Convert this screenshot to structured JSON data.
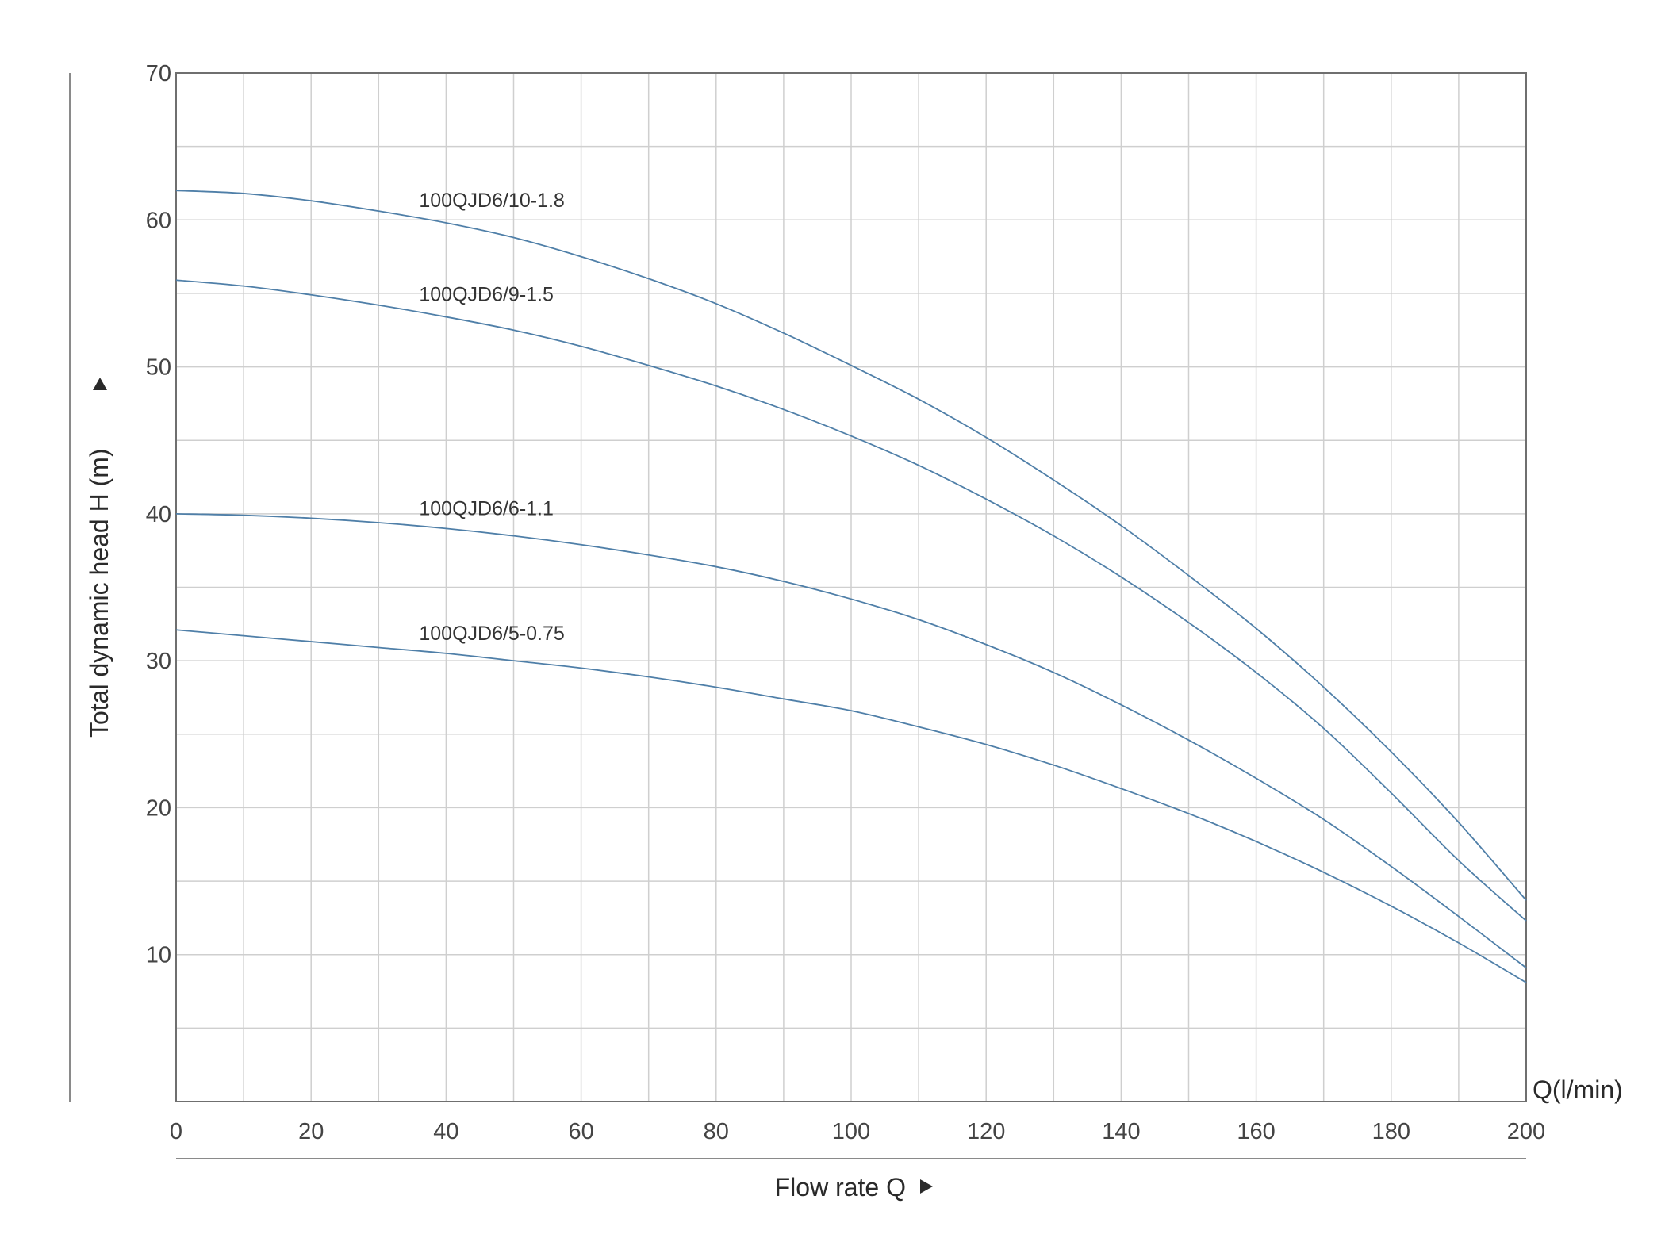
{
  "chart_data": {
    "type": "line",
    "title": "",
    "xlabel": "Flow rate Q",
    "ylabel": "Total dynamic head H (m)",
    "x_unit": "Q(l/min)",
    "xlim": [
      0,
      200
    ],
    "ylim": [
      0,
      70
    ],
    "x_ticks": [
      0,
      20,
      40,
      60,
      80,
      100,
      120,
      140,
      160,
      180,
      200
    ],
    "y_ticks": [
      10,
      20,
      30,
      40,
      50,
      60,
      70
    ],
    "grid": true,
    "line_color": "#4f7fa8",
    "series": [
      {
        "name": "100QJD6/10-1.8",
        "x": [
          0,
          10,
          20,
          30,
          40,
          50,
          60,
          70,
          80,
          90,
          100,
          110,
          120,
          130,
          140,
          150,
          160,
          170,
          180,
          190,
          200
        ],
        "y": [
          62.0,
          61.8,
          61.3,
          60.6,
          59.8,
          58.8,
          57.5,
          56.0,
          54.3,
          52.3,
          50.1,
          47.8,
          45.2,
          42.3,
          39.2,
          35.8,
          32.2,
          28.2,
          23.8,
          19.0,
          13.7
        ]
      },
      {
        "name": "100QJD6/9-1.5",
        "x": [
          0,
          10,
          20,
          30,
          40,
          50,
          60,
          70,
          80,
          90,
          100,
          110,
          120,
          130,
          140,
          150,
          160,
          170,
          180,
          190,
          200
        ],
        "y": [
          55.9,
          55.5,
          54.9,
          54.2,
          53.4,
          52.5,
          51.4,
          50.1,
          48.7,
          47.1,
          45.3,
          43.3,
          41.0,
          38.5,
          35.7,
          32.6,
          29.2,
          25.4,
          21.0,
          16.4,
          12.3
        ]
      },
      {
        "name": "100QJD6/6-1.1",
        "x": [
          0,
          10,
          20,
          30,
          40,
          50,
          60,
          70,
          80,
          90,
          100,
          110,
          120,
          130,
          140,
          150,
          160,
          170,
          180,
          190,
          200
        ],
        "y": [
          40.0,
          39.9,
          39.7,
          39.4,
          39.0,
          38.5,
          37.9,
          37.2,
          36.4,
          35.4,
          34.2,
          32.8,
          31.1,
          29.2,
          27.0,
          24.6,
          22.0,
          19.2,
          16.0,
          12.6,
          9.1
        ]
      },
      {
        "name": "100QJD6/5-0.75",
        "x": [
          0,
          10,
          20,
          30,
          40,
          50,
          60,
          70,
          80,
          90,
          100,
          110,
          120,
          130,
          140,
          150,
          160,
          170,
          180,
          190,
          200
        ],
        "y": [
          32.1,
          31.7,
          31.3,
          30.9,
          30.5,
          30.0,
          29.5,
          28.9,
          28.2,
          27.4,
          26.6,
          25.5,
          24.3,
          22.9,
          21.3,
          19.6,
          17.7,
          15.6,
          13.3,
          10.8,
          8.1
        ]
      }
    ]
  }
}
